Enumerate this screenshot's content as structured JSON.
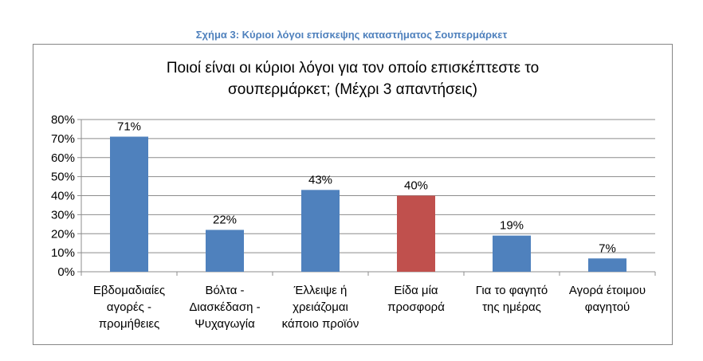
{
  "caption": "Σχήμα 3: Κύριοι λόγοι επίσκεψης καταστήματος Σουπερμάρκετ",
  "chart_data": {
    "type": "bar",
    "title_lines": [
      "Ποιοί είναι οι κύριοι λόγοι για τον οποίο επισκέπτεστε το",
      "σουπερμάρκετ; (Μέχρι 3 απαντήσεις)"
    ],
    "categories": [
      [
        "Εβδομαδιαίες",
        "αγορές -",
        "προμήθειες"
      ],
      [
        "Βόλτα -",
        "Διασκέδαση -",
        "Ψυχαγωγία"
      ],
      [
        "Έλλειψε ή",
        "χρειάζομαι",
        "κάποιο προϊόν"
      ],
      [
        "Είδα μία",
        "προσφορά"
      ],
      [
        "Για το φαγητό",
        "της ημέρας"
      ],
      [
        "Αγορά έτοιμου",
        "φαγητού"
      ]
    ],
    "values": [
      71,
      22,
      43,
      40,
      19,
      7
    ],
    "data_labels": [
      "71%",
      "22%",
      "43%",
      "40%",
      "19%",
      "7%"
    ],
    "bar_colors": [
      "#4f81bd",
      "#4f81bd",
      "#4f81bd",
      "#c0504d",
      "#4f81bd",
      "#4f81bd"
    ],
    "yticks": [
      "0%",
      "10%",
      "20%",
      "30%",
      "40%",
      "50%",
      "60%",
      "70%",
      "80%"
    ],
    "ylim": [
      0,
      80
    ],
    "grid": true,
    "xlabel": "",
    "ylabel": ""
  }
}
